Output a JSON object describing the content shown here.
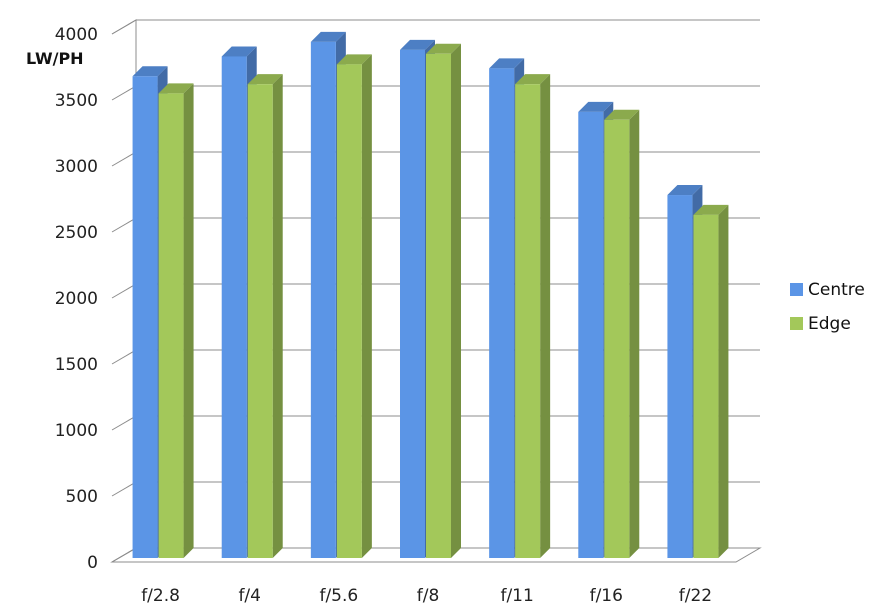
{
  "chart_data": {
    "type": "bar",
    "categories": [
      "f/2.8",
      "f/4",
      "f/5.6",
      "f/8",
      "f/11",
      "f/16",
      "f/22"
    ],
    "series": [
      {
        "name": "Centre",
        "values": [
          3680,
          3830,
          3940,
          3880,
          3740,
          3410,
          2780
        ],
        "color": "#5b95e6"
      },
      {
        "name": "Edge",
        "values": [
          3550,
          3620,
          3770,
          3850,
          3620,
          3350,
          2630
        ],
        "color": "#a3c85a"
      }
    ],
    "ylabel": "LW/PH",
    "ylim": [
      0,
      4000
    ],
    "yticks": [
      0,
      500,
      1000,
      1500,
      2000,
      2500,
      3000,
      3500,
      4000
    ],
    "grid": true,
    "legend": "right",
    "three_d": true
  }
}
